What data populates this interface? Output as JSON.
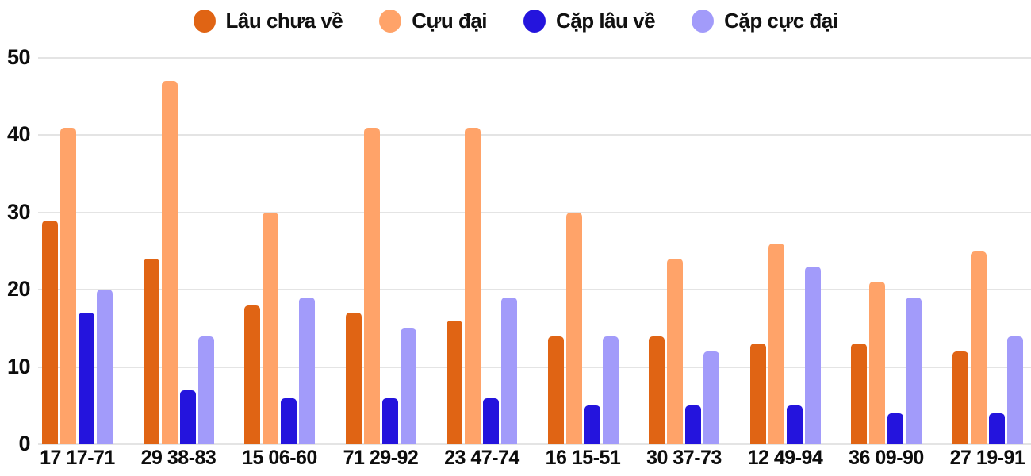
{
  "chart_data": {
    "type": "bar",
    "title": "",
    "xlabel": "",
    "ylabel": "",
    "categories": [
      "17 17-71",
      "29 38-83",
      "15 06-60",
      "71 29-92",
      "23 47-74",
      "16 15-51",
      "30 37-73",
      "12 49-94",
      "36 09-90",
      "27 19-91"
    ],
    "series": [
      {
        "name": "Lâu chưa về",
        "color": "#E06414",
        "values": [
          29,
          24,
          18,
          17,
          16,
          14,
          14,
          13,
          13,
          12
        ]
      },
      {
        "name": "Cựu đại",
        "color": "#FFA369",
        "values": [
          41,
          47,
          30,
          41,
          41,
          30,
          24,
          26,
          21,
          25
        ]
      },
      {
        "name": "Cặp lâu về",
        "color": "#2414DD",
        "values": [
          17,
          7,
          6,
          6,
          6,
          5,
          5,
          5,
          4,
          4
        ]
      },
      {
        "name": "Cặp cực đại",
        "color": "#A29BFA",
        "values": [
          20,
          14,
          19,
          15,
          19,
          14,
          12,
          23,
          19,
          14
        ]
      }
    ],
    "ylim": [
      0,
      50
    ],
    "yticks": [
      0,
      10,
      20,
      30,
      40,
      50
    ],
    "grid": true,
    "legend_position": "top",
    "colors": {
      "grid": "#e4e4e4",
      "axis_text": "#0d0d0d",
      "legend_text": "#111111",
      "background": "#ffffff"
    }
  }
}
